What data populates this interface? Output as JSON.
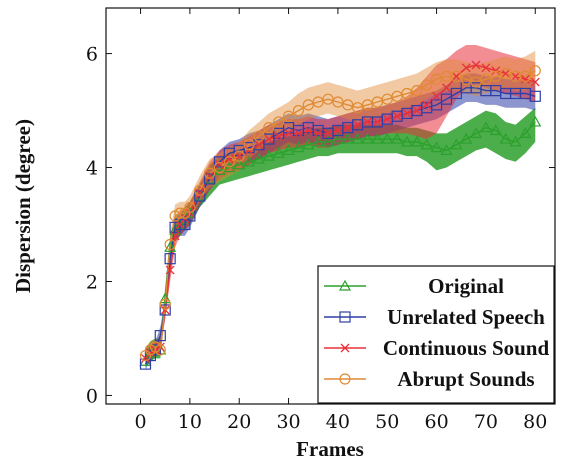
{
  "chart_data": {
    "type": "line",
    "xlabel": "Frames",
    "ylabel": "Dispersion (degree)",
    "xlim": [
      -7,
      84
    ],
    "ylim": [
      -0.15,
      6.8
    ],
    "xticks": [
      0,
      10,
      20,
      30,
      40,
      50,
      60,
      70,
      80
    ],
    "yticks": [
      0,
      2,
      4,
      6
    ],
    "grid": false,
    "legend_position": "bottom-right",
    "series": [
      {
        "name": "Original",
        "color": "#2ca02c",
        "marker": "triangle",
        "x": [
          1,
          2,
          3,
          4,
          5,
          6,
          7,
          8,
          9,
          10,
          12,
          14,
          16,
          18,
          20,
          22,
          24,
          26,
          28,
          30,
          32,
          34,
          36,
          38,
          40,
          42,
          44,
          46,
          48,
          50,
          52,
          54,
          56,
          58,
          60,
          62,
          64,
          66,
          68,
          70,
          72,
          74,
          76,
          78,
          80
        ],
        "values": [
          0.6,
          0.75,
          0.8,
          0.8,
          1.7,
          2.6,
          2.9,
          3.0,
          3.1,
          3.2,
          3.5,
          3.8,
          3.95,
          4.0,
          4.05,
          4.1,
          4.15,
          4.2,
          4.25,
          4.3,
          4.35,
          4.4,
          4.45,
          4.45,
          4.5,
          4.5,
          4.5,
          4.5,
          4.5,
          4.5,
          4.5,
          4.45,
          4.45,
          4.4,
          4.35,
          4.3,
          4.4,
          4.5,
          4.6,
          4.7,
          4.65,
          4.5,
          4.45,
          4.6,
          4.8
        ],
        "lower": [
          0.5,
          0.6,
          0.65,
          0.65,
          1.5,
          2.4,
          2.7,
          2.8,
          2.9,
          3.0,
          3.3,
          3.5,
          3.7,
          3.75,
          3.8,
          3.85,
          3.9,
          3.95,
          4.0,
          4.05,
          4.1,
          4.15,
          4.2,
          4.2,
          4.25,
          4.25,
          4.25,
          4.25,
          4.25,
          4.25,
          4.25,
          4.2,
          4.2,
          4.1,
          3.95,
          4.0,
          4.1,
          4.2,
          4.3,
          4.35,
          4.25,
          4.15,
          4.1,
          4.25,
          4.45
        ],
        "upper": [
          0.8,
          0.95,
          1.0,
          1.0,
          1.9,
          2.8,
          3.1,
          3.2,
          3.3,
          3.4,
          3.7,
          4.05,
          4.2,
          4.25,
          4.3,
          4.35,
          4.4,
          4.45,
          4.5,
          4.55,
          4.6,
          4.65,
          4.7,
          4.7,
          4.75,
          4.75,
          4.75,
          4.75,
          4.75,
          4.75,
          4.75,
          4.7,
          4.7,
          4.65,
          4.6,
          4.6,
          4.7,
          4.8,
          4.9,
          5.0,
          4.95,
          4.8,
          4.75,
          4.9,
          5.05
        ]
      },
      {
        "name": "Unrelated Speech",
        "color": "#2f3fa6",
        "marker": "square",
        "x": [
          1,
          2,
          3,
          4,
          5,
          6,
          7,
          8,
          9,
          10,
          12,
          14,
          16,
          18,
          20,
          22,
          24,
          26,
          28,
          30,
          32,
          34,
          36,
          38,
          40,
          42,
          44,
          46,
          48,
          50,
          52,
          54,
          56,
          58,
          60,
          62,
          64,
          66,
          68,
          70,
          72,
          74,
          76,
          78,
          80
        ],
        "values": [
          0.55,
          0.7,
          0.8,
          1.05,
          1.5,
          2.4,
          2.95,
          3.0,
          3.0,
          3.15,
          3.5,
          3.8,
          4.1,
          4.25,
          4.3,
          4.35,
          4.4,
          4.5,
          4.6,
          4.7,
          4.65,
          4.7,
          4.65,
          4.6,
          4.65,
          4.7,
          4.75,
          4.8,
          4.8,
          4.85,
          4.9,
          4.95,
          5.0,
          5.05,
          5.1,
          5.2,
          5.3,
          5.4,
          5.4,
          5.35,
          5.35,
          5.3,
          5.3,
          5.3,
          5.25
        ],
        "lower": [
          0.45,
          0.6,
          0.7,
          0.9,
          1.35,
          2.2,
          2.75,
          2.8,
          2.8,
          2.95,
          3.3,
          3.6,
          3.85,
          4.0,
          4.05,
          4.1,
          4.15,
          4.25,
          4.35,
          4.45,
          4.4,
          4.45,
          4.4,
          4.35,
          4.4,
          4.45,
          4.5,
          4.55,
          4.55,
          4.6,
          4.65,
          4.7,
          4.75,
          4.8,
          4.85,
          4.95,
          5.05,
          5.15,
          5.15,
          5.1,
          5.1,
          5.05,
          5.05,
          5.05,
          5.0
        ],
        "upper": [
          0.7,
          0.85,
          0.95,
          1.2,
          1.7,
          2.6,
          3.15,
          3.2,
          3.2,
          3.35,
          3.7,
          4.0,
          4.3,
          4.45,
          4.5,
          4.6,
          4.65,
          4.75,
          4.85,
          4.95,
          4.9,
          4.95,
          4.9,
          4.85,
          4.9,
          4.95,
          5.0,
          5.05,
          5.05,
          5.1,
          5.15,
          5.2,
          5.25,
          5.3,
          5.35,
          5.45,
          5.55,
          5.65,
          5.65,
          5.6,
          5.6,
          5.55,
          5.55,
          5.55,
          5.5
        ]
      },
      {
        "name": "Continuous Sound",
        "color": "#e8313a",
        "marker": "x",
        "x": [
          1,
          2,
          3,
          4,
          5,
          6,
          7,
          8,
          9,
          10,
          12,
          14,
          16,
          18,
          20,
          22,
          24,
          26,
          28,
          30,
          32,
          34,
          36,
          38,
          40,
          42,
          44,
          46,
          48,
          50,
          52,
          54,
          56,
          58,
          60,
          62,
          64,
          66,
          68,
          70,
          72,
          74,
          76,
          78,
          80
        ],
        "values": [
          0.65,
          0.75,
          0.8,
          0.85,
          1.5,
          2.2,
          2.8,
          3.0,
          3.1,
          3.2,
          3.55,
          3.85,
          4.05,
          4.15,
          4.2,
          4.3,
          4.4,
          4.5,
          4.55,
          4.6,
          4.6,
          4.65,
          4.6,
          4.6,
          4.65,
          4.7,
          4.75,
          4.8,
          4.8,
          4.85,
          4.9,
          4.95,
          5.0,
          5.1,
          5.25,
          5.4,
          5.6,
          5.75,
          5.8,
          5.75,
          5.7,
          5.65,
          5.6,
          5.55,
          5.5
        ],
        "lower": [
          0.55,
          0.65,
          0.7,
          0.75,
          1.35,
          2.0,
          2.6,
          2.8,
          2.9,
          3.0,
          3.35,
          3.6,
          3.8,
          3.9,
          3.95,
          4.05,
          4.15,
          4.25,
          4.3,
          4.35,
          4.35,
          4.4,
          4.35,
          4.35,
          4.4,
          4.45,
          4.5,
          4.55,
          4.55,
          4.6,
          4.6,
          4.6,
          4.55,
          4.5,
          4.6,
          4.9,
          5.2,
          5.4,
          5.45,
          5.4,
          5.35,
          5.3,
          5.25,
          5.2,
          5.15
        ],
        "upper": [
          0.75,
          0.9,
          0.95,
          1.0,
          1.7,
          2.45,
          3.0,
          3.2,
          3.3,
          3.4,
          3.75,
          4.1,
          4.3,
          4.4,
          4.45,
          4.55,
          4.65,
          4.75,
          4.8,
          4.85,
          4.85,
          4.9,
          4.85,
          4.85,
          4.9,
          4.95,
          5.0,
          5.05,
          5.05,
          5.1,
          5.15,
          5.25,
          5.4,
          5.6,
          5.8,
          5.9,
          6.05,
          6.15,
          6.15,
          6.1,
          6.05,
          6.0,
          5.95,
          5.9,
          5.85
        ]
      },
      {
        "name": "Abrupt Sounds",
        "color": "#e08a33",
        "marker": "circle",
        "x": [
          1,
          2,
          3,
          4,
          5,
          6,
          7,
          8,
          9,
          10,
          12,
          14,
          16,
          18,
          20,
          22,
          24,
          26,
          28,
          30,
          32,
          34,
          36,
          38,
          40,
          42,
          44,
          46,
          48,
          50,
          52,
          54,
          56,
          58,
          60,
          62,
          64,
          66,
          68,
          70,
          72,
          74,
          76,
          78,
          80
        ],
        "values": [
          0.7,
          0.8,
          0.85,
          0.8,
          1.6,
          2.65,
          3.15,
          3.2,
          3.2,
          3.3,
          3.6,
          3.9,
          4.0,
          4.1,
          4.2,
          4.4,
          4.55,
          4.7,
          4.8,
          4.9,
          5.0,
          5.1,
          5.15,
          5.2,
          5.15,
          5.1,
          5.05,
          5.1,
          5.15,
          5.2,
          5.25,
          5.3,
          5.35,
          5.45,
          5.55,
          5.6,
          5.6,
          5.55,
          5.5,
          5.55,
          5.6,
          5.65,
          5.6,
          5.6,
          5.7
        ],
        "lower": [
          0.6,
          0.7,
          0.75,
          0.7,
          1.45,
          2.45,
          2.95,
          3.0,
          3.0,
          3.1,
          3.4,
          3.65,
          3.75,
          3.85,
          3.95,
          4.15,
          4.3,
          4.45,
          4.55,
          4.65,
          4.75,
          4.85,
          4.9,
          4.95,
          4.9,
          4.85,
          4.8,
          4.85,
          4.9,
          4.95,
          5.0,
          5.05,
          5.1,
          5.2,
          5.3,
          5.35,
          5.35,
          5.3,
          5.25,
          5.3,
          5.35,
          5.4,
          5.35,
          5.35,
          5.45
        ],
        "upper": [
          0.85,
          0.95,
          1.0,
          0.95,
          1.8,
          2.85,
          3.35,
          3.4,
          3.4,
          3.5,
          3.85,
          4.15,
          4.25,
          4.35,
          4.45,
          4.65,
          4.8,
          4.95,
          5.05,
          5.15,
          5.3,
          5.4,
          5.45,
          5.5,
          5.45,
          5.4,
          5.35,
          5.4,
          5.45,
          5.5,
          5.55,
          5.6,
          5.65,
          5.75,
          5.85,
          5.9,
          5.9,
          5.85,
          5.8,
          5.85,
          5.9,
          5.95,
          5.9,
          5.95,
          6.05
        ]
      }
    ]
  }
}
